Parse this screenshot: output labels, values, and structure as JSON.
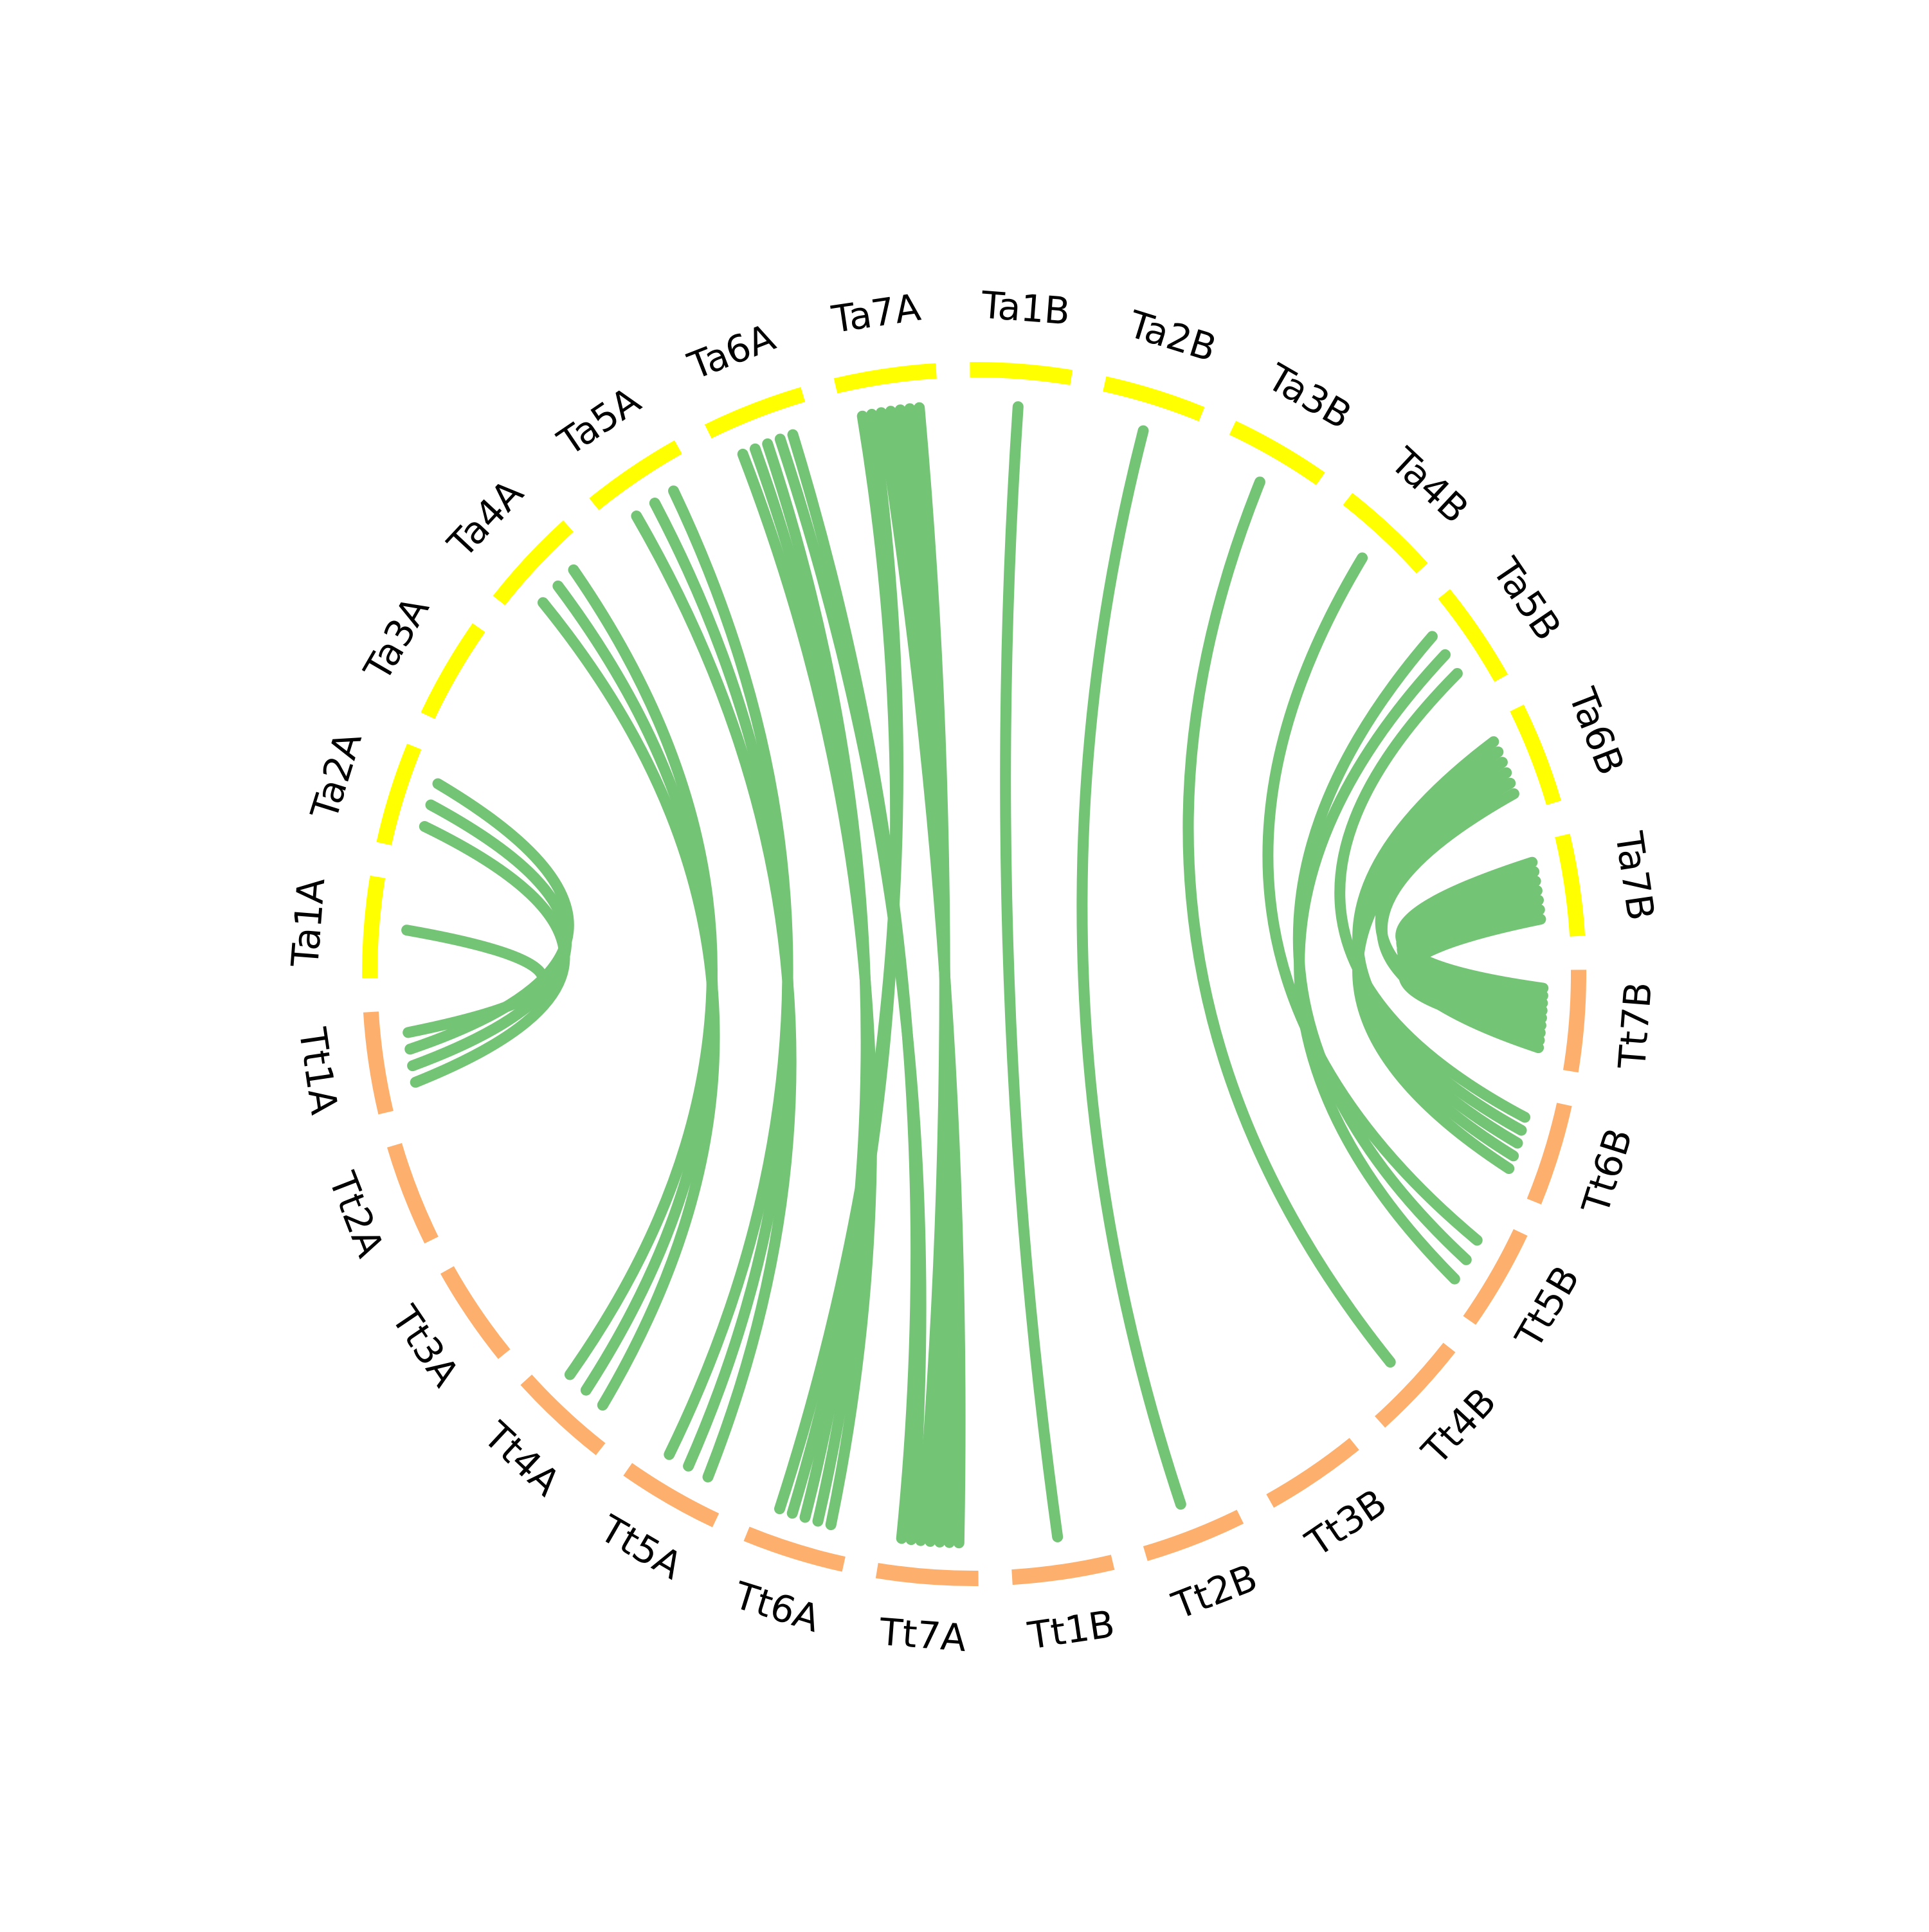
{
  "colors": {
    "tt_segment": "#FDB06E",
    "ta_segment": "#FFFF00",
    "link": "#74C476",
    "label": "#000000"
  },
  "segments": [
    {
      "label": "Ta1A",
      "group": "ta"
    },
    {
      "label": "Ta2A",
      "group": "ta"
    },
    {
      "label": "Ta3A",
      "group": "ta"
    },
    {
      "label": "Ta4A",
      "group": "ta"
    },
    {
      "label": "Ta5A",
      "group": "ta"
    },
    {
      "label": "Ta6A",
      "group": "ta"
    },
    {
      "label": "Ta7A",
      "group": "ta"
    },
    {
      "label": "Ta1B",
      "group": "ta"
    },
    {
      "label": "Ta2B",
      "group": "ta"
    },
    {
      "label": "Ta3B",
      "group": "ta"
    },
    {
      "label": "Ta4B",
      "group": "ta"
    },
    {
      "label": "Ta5B",
      "group": "ta"
    },
    {
      "label": "Ta6B",
      "group": "ta"
    },
    {
      "label": "Ta7B",
      "group": "ta"
    },
    {
      "label": "Tt7B",
      "group": "tt"
    },
    {
      "label": "Tt6B",
      "group": "tt"
    },
    {
      "label": "Tt5B",
      "group": "tt"
    },
    {
      "label": "Tt4B",
      "group": "tt"
    },
    {
      "label": "Tt3B",
      "group": "tt"
    },
    {
      "label": "Tt2B",
      "group": "tt"
    },
    {
      "label": "Tt1B",
      "group": "tt"
    },
    {
      "label": "Tt7A",
      "group": "tt"
    },
    {
      "label": "Tt6A",
      "group": "tt"
    },
    {
      "label": "Tt5A",
      "group": "tt"
    },
    {
      "label": "Tt4A",
      "group": "tt"
    },
    {
      "label": "Tt3A",
      "group": "tt"
    },
    {
      "label": "Tt2A",
      "group": "tt"
    },
    {
      "label": "Tt1A",
      "group": "tt"
    }
  ],
  "links": [
    {
      "from": "Tt1A",
      "to": "Ta2A"
    },
    {
      "from": "Tt1A",
      "to": "Ta2A"
    },
    {
      "from": "Tt1A",
      "to": "Ta2A"
    },
    {
      "from": "Tt1A",
      "to": "Ta1A"
    },
    {
      "from": "Tt4A",
      "to": "Ta4A"
    },
    {
      "from": "Tt4A",
      "to": "Ta4A"
    },
    {
      "from": "Tt4A",
      "to": "Ta4A"
    },
    {
      "from": "Tt5A",
      "to": "Ta5A"
    },
    {
      "from": "Tt5A",
      "to": "Ta5A"
    },
    {
      "from": "Tt5A",
      "to": "Ta5A"
    },
    {
      "from": "Tt6A",
      "to": "Ta6A"
    },
    {
      "from": "Tt6A",
      "to": "Ta6A"
    },
    {
      "from": "Tt6A",
      "to": "Ta6A"
    },
    {
      "from": "Tt6A",
      "to": "Ta7A"
    },
    {
      "from": "Tt6A",
      "to": "Ta7A"
    },
    {
      "from": "Tt7A",
      "to": "Ta7A"
    },
    {
      "from": "Tt7A",
      "to": "Ta7A"
    },
    {
      "from": "Tt7A",
      "to": "Ta7A"
    },
    {
      "from": "Tt7A",
      "to": "Ta7A"
    },
    {
      "from": "Tt7A",
      "to": "Ta7A"
    },
    {
      "from": "Tt7A",
      "to": "Ta6A"
    },
    {
      "from": "Tt7A",
      "to": "Ta6A"
    },
    {
      "from": "Tt1B",
      "to": "Ta1B"
    },
    {
      "from": "Tt2B",
      "to": "Ta2B"
    },
    {
      "from": "Tt4B",
      "to": "Ta3B"
    },
    {
      "from": "Tt5B",
      "to": "Ta4B"
    },
    {
      "from": "Tt5B",
      "to": "Ta5B"
    },
    {
      "from": "Tt5B",
      "to": "Ta5B"
    },
    {
      "from": "Tt6B",
      "to": "Ta5B"
    },
    {
      "from": "Tt6B",
      "to": "Ta6B"
    },
    {
      "from": "Tt6B",
      "to": "Ta6B"
    },
    {
      "from": "Tt6B",
      "to": "Ta6B"
    },
    {
      "from": "Tt6B",
      "to": "Ta6B"
    },
    {
      "from": "Tt7B",
      "to": "Ta7B"
    },
    {
      "from": "Tt7B",
      "to": "Ta7B"
    },
    {
      "from": "Tt7B",
      "to": "Ta7B"
    },
    {
      "from": "Tt7B",
      "to": "Ta7B"
    },
    {
      "from": "Tt7B",
      "to": "Ta7B"
    },
    {
      "from": "Tt7B",
      "to": "Ta7B"
    },
    {
      "from": "Tt7B",
      "to": "Ta7B"
    },
    {
      "from": "Tt7B",
      "to": "Ta6B"
    },
    {
      "from": "Tt7B",
      "to": "Ta6B"
    }
  ]
}
